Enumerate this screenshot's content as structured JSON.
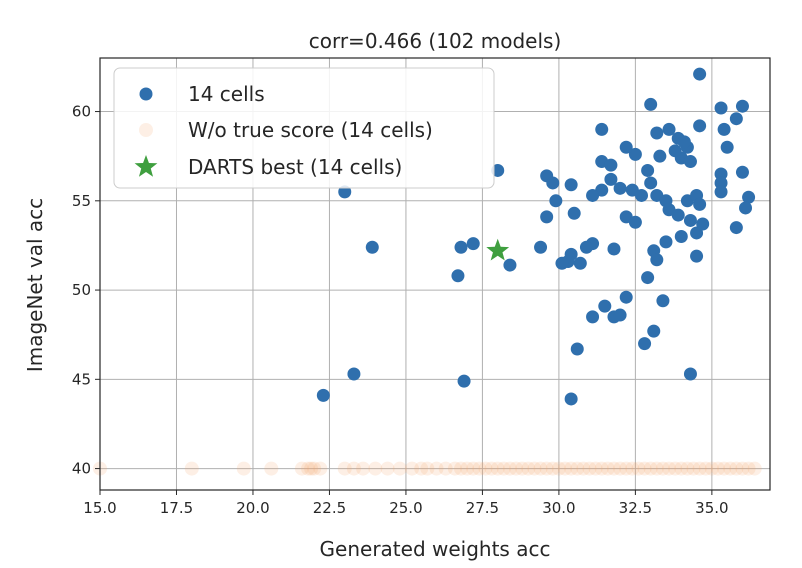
{
  "chart_data": {
    "type": "scatter",
    "title": "corr=0.466 (102 models)",
    "xlabel": "Generated weights acc",
    "ylabel": "ImageNet val acc",
    "xlim": [
      15.0,
      36.9
    ],
    "ylim": [
      38.8,
      63.0
    ],
    "grid": true,
    "legend_placement": "top-left",
    "xticks": [
      "15.0",
      "17.5",
      "20.0",
      "22.5",
      "25.0",
      "27.5",
      "30.0",
      "32.5",
      "35.0"
    ],
    "yticks": [
      "40",
      "45",
      "50",
      "55",
      "60"
    ],
    "colors": {
      "cells14": "#2f6fad",
      "no_true": "#f6a96d",
      "darts": "#3f9f3f",
      "grid": "#b0b0b0",
      "axis": "#262626"
    },
    "series": [
      {
        "name": "14 cells",
        "marker": "circle",
        "points": [
          [
            34.6,
            62.1
          ],
          [
            35.3,
            60.2
          ],
          [
            36.0,
            60.3
          ],
          [
            35.8,
            59.6
          ],
          [
            33.0,
            60.4
          ],
          [
            31.4,
            59.0
          ],
          [
            32.5,
            57.6
          ],
          [
            33.2,
            58.8
          ],
          [
            33.6,
            59.0
          ],
          [
            33.9,
            58.5
          ],
          [
            34.2,
            58.0
          ],
          [
            34.6,
            59.2
          ],
          [
            35.4,
            59.0
          ],
          [
            35.5,
            58.0
          ],
          [
            36.0,
            56.6
          ],
          [
            35.3,
            56.5
          ],
          [
            35.3,
            56.0
          ],
          [
            35.3,
            55.5
          ],
          [
            36.2,
            55.2
          ],
          [
            36.1,
            54.6
          ],
          [
            35.8,
            53.5
          ],
          [
            34.1,
            58.3
          ],
          [
            34.0,
            57.4
          ],
          [
            34.3,
            57.2
          ],
          [
            33.8,
            57.8
          ],
          [
            33.3,
            57.5
          ],
          [
            32.9,
            56.7
          ],
          [
            32.2,
            58.0
          ],
          [
            31.4,
            57.2
          ],
          [
            31.7,
            57.0
          ],
          [
            31.7,
            56.2
          ],
          [
            31.4,
            55.6
          ],
          [
            31.1,
            55.3
          ],
          [
            32.0,
            55.7
          ],
          [
            32.4,
            55.6
          ],
          [
            32.7,
            55.3
          ],
          [
            32.2,
            54.1
          ],
          [
            32.5,
            53.8
          ],
          [
            33.0,
            56.0
          ],
          [
            33.2,
            55.3
          ],
          [
            33.6,
            54.5
          ],
          [
            33.5,
            55.0
          ],
          [
            33.9,
            54.2
          ],
          [
            34.2,
            55.0
          ],
          [
            34.5,
            55.3
          ],
          [
            34.6,
            54.8
          ],
          [
            34.5,
            53.2
          ],
          [
            34.3,
            53.9
          ],
          [
            34.7,
            53.7
          ],
          [
            34.0,
            53.0
          ],
          [
            33.5,
            52.7
          ],
          [
            33.1,
            52.2
          ],
          [
            33.2,
            51.7
          ],
          [
            34.5,
            51.9
          ],
          [
            31.1,
            52.6
          ],
          [
            30.9,
            52.4
          ],
          [
            31.8,
            52.3
          ],
          [
            30.4,
            52.0
          ],
          [
            30.3,
            51.6
          ],
          [
            30.1,
            51.5
          ],
          [
            30.7,
            51.5
          ],
          [
            29.4,
            52.4
          ],
          [
            29.6,
            54.1
          ],
          [
            29.9,
            55.0
          ],
          [
            29.6,
            56.4
          ],
          [
            29.8,
            56.0
          ],
          [
            30.4,
            55.9
          ],
          [
            30.5,
            54.3
          ],
          [
            31.1,
            48.5
          ],
          [
            31.5,
            49.1
          ],
          [
            31.8,
            48.5
          ],
          [
            32.0,
            48.6
          ],
          [
            32.2,
            49.6
          ],
          [
            32.8,
            47.0
          ],
          [
            33.1,
            47.7
          ],
          [
            32.9,
            50.7
          ],
          [
            33.4,
            49.4
          ],
          [
            30.6,
            46.7
          ],
          [
            30.4,
            43.9
          ],
          [
            34.3,
            45.3
          ],
          [
            28.0,
            56.7
          ],
          [
            28.4,
            51.4
          ],
          [
            26.7,
            50.8
          ],
          [
            26.8,
            52.4
          ],
          [
            27.2,
            52.6
          ],
          [
            26.9,
            44.9
          ],
          [
            23.0,
            55.5
          ],
          [
            23.9,
            52.4
          ],
          [
            23.3,
            45.3
          ],
          [
            22.3,
            44.1
          ]
        ]
      },
      {
        "name": "W/o true score (14 cells)",
        "marker": "circle",
        "y": 40,
        "x": [
          15.0,
          18.0,
          19.7,
          20.6,
          21.6,
          21.8,
          21.9,
          22.0,
          22.2,
          23.0,
          23.3,
          23.6,
          24.0,
          24.4,
          24.8,
          25.2,
          25.5,
          25.7,
          26.0,
          26.3,
          26.6,
          26.8,
          27.0,
          27.2,
          27.4,
          27.6,
          27.8,
          28.0,
          28.2,
          28.4,
          28.6,
          28.8,
          29.0,
          29.2,
          29.4,
          29.6,
          29.8,
          30.0,
          30.2,
          30.4,
          30.6,
          30.8,
          31.0,
          31.2,
          31.4,
          31.6,
          31.8,
          32.0,
          32.2,
          32.4,
          32.6,
          32.8,
          33.0,
          33.2,
          33.4,
          33.6,
          33.8,
          34.0,
          34.2,
          34.4,
          34.6,
          34.8,
          35.0,
          35.2,
          35.4,
          35.6,
          35.8,
          36.0,
          36.2,
          36.4
        ]
      },
      {
        "name": "DARTS best (14 cells)",
        "marker": "star",
        "points": [
          [
            28.0,
            52.2
          ]
        ]
      }
    ]
  }
}
